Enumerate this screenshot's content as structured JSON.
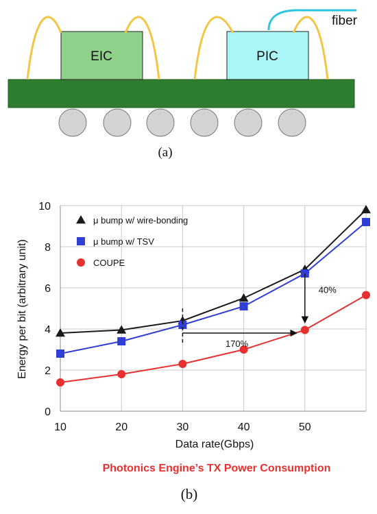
{
  "diagram_a": {
    "eic_label": "EIC",
    "pic_label": "PIC",
    "fiber_label": "fiber",
    "caption": "(a)",
    "colors": {
      "substrate": "#2e7d2e",
      "eic": "#8fd18a",
      "pic": "#aaf5f5",
      "bump": "#d4d4d4",
      "wire": "#f4c542",
      "fiber": "#29c6e3"
    }
  },
  "chart_data": {
    "type": "line",
    "x": [
      10,
      20,
      30,
      40,
      50,
      60
    ],
    "xticks": [
      "10",
      "20",
      "30",
      "40",
      "50"
    ],
    "yticks": [
      "0",
      "2",
      "4",
      "6",
      "8",
      "10"
    ],
    "xlim": [
      10,
      60
    ],
    "ylim": [
      0,
      10
    ],
    "xlabel": "Data rate(Gbps)",
    "ylabel": "Energy per bit (arbitrary unit)",
    "grid": true,
    "legend_position": "top-left",
    "series": [
      {
        "name": "μ bump  w/ wire-bonding",
        "marker": "triangle",
        "color": "#1a1a1a",
        "values": [
          3.8,
          3.95,
          4.4,
          5.5,
          6.9,
          9.8
        ]
      },
      {
        "name": "μ bump  w/ TSV",
        "marker": "square",
        "color": "#2f3fd6",
        "values": [
          2.8,
          3.4,
          4.2,
          5.1,
          6.7,
          9.2
        ]
      },
      {
        "name": "COUPE",
        "marker": "circle",
        "color": "#e83030",
        "values": [
          1.4,
          1.8,
          2.3,
          3.0,
          3.95,
          5.65
        ]
      }
    ],
    "annotations": [
      {
        "text": "170%"
      },
      {
        "text": "40%"
      }
    ],
    "subtitle": "Photonics Engine’s TX Power Consumption",
    "subtitle_color": "#e83030"
  },
  "caption_b": "(b)"
}
